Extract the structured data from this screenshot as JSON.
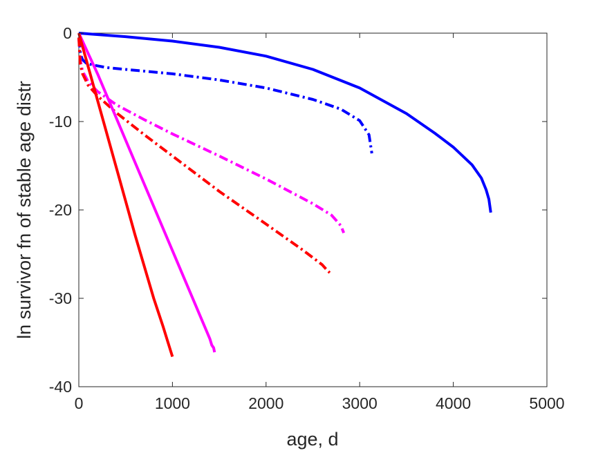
{
  "chart_data": {
    "type": "line",
    "title": "",
    "xlabel": "age, d",
    "ylabel": "ln survivor fn of stable age distr",
    "xlim": [
      0,
      5000
    ],
    "ylim": [
      -40,
      0
    ],
    "xticks": [
      0,
      1000,
      2000,
      3000,
      4000,
      5000
    ],
    "yticks": [
      0,
      -10,
      -20,
      -30,
      -40
    ],
    "xtick_labels": [
      "0",
      "1000",
      "2000",
      "3000",
      "4000",
      "5000"
    ],
    "ytick_labels": [
      "0",
      "-10",
      "-20",
      "-30",
      "-40"
    ],
    "grid": false,
    "legend": "none",
    "series": [
      {
        "color": "#0000ff",
        "style": "solid",
        "x": [
          0,
          500,
          1000,
          1500,
          2000,
          2500,
          3000,
          3500,
          3800,
          4000,
          4200,
          4300,
          4350,
          4380,
          4400
        ],
        "y": [
          0,
          -0.4,
          -0.9,
          -1.6,
          -2.6,
          -4.1,
          -6.2,
          -9.1,
          -11.3,
          -12.9,
          -14.9,
          -16.4,
          -17.7,
          -18.8,
          -20.3
        ]
      },
      {
        "color": "#0000ff",
        "style": "dashdot",
        "x": [
          0,
          20,
          40,
          80,
          150,
          300,
          500,
          1000,
          1500,
          2000,
          2500,
          2800,
          3000,
          3100,
          3130
        ],
        "y": [
          -0.6,
          -2.5,
          -3.0,
          -3.4,
          -3.6,
          -3.9,
          -4.1,
          -4.6,
          -5.3,
          -6.2,
          -7.5,
          -8.6,
          -9.9,
          -11.5,
          -13.6
        ]
      },
      {
        "color": "#ff00ff",
        "style": "dashdot",
        "x": [
          0,
          15,
          40,
          100,
          200,
          400,
          700,
          1000,
          1500,
          2000,
          2500,
          2700,
          2800,
          2830
        ],
        "y": [
          -0.5,
          -3.0,
          -4.3,
          -5.5,
          -6.6,
          -8.1,
          -9.8,
          -11.4,
          -13.9,
          -16.5,
          -19.3,
          -20.6,
          -21.8,
          -22.6
        ]
      },
      {
        "color": "#ff0000",
        "style": "dashdot",
        "x": [
          0,
          15,
          40,
          100,
          200,
          400,
          700,
          1000,
          1500,
          2000,
          2400,
          2600,
          2650,
          2680
        ],
        "y": [
          -0.5,
          -3.5,
          -4.6,
          -5.9,
          -7.1,
          -9.0,
          -11.5,
          -13.9,
          -17.9,
          -21.6,
          -24.6,
          -26.2,
          -26.8,
          -27.1
        ]
      },
      {
        "color": "#ff00ff",
        "style": "solid",
        "x": [
          0,
          200,
          400,
          600,
          800,
          1000,
          1200,
          1400,
          1420,
          1440,
          1450
        ],
        "y": [
          0,
          -4.6,
          -9.6,
          -14.6,
          -19.6,
          -24.6,
          -29.6,
          -34.6,
          -35.3,
          -35.6,
          -36.1
        ]
      },
      {
        "color": "#ff0000",
        "style": "solid",
        "x": [
          0,
          200,
          400,
          600,
          800,
          900,
          950,
          1000
        ],
        "y": [
          0,
          -7.6,
          -15.2,
          -22.8,
          -30.0,
          -33.2,
          -34.9,
          -36.6
        ]
      }
    ]
  }
}
